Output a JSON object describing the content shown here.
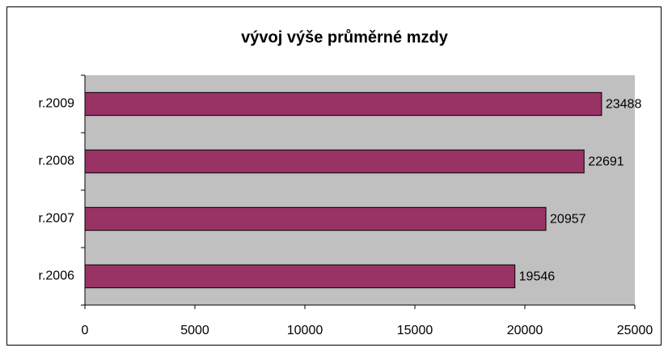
{
  "chart_data": {
    "type": "bar",
    "orientation": "horizontal",
    "title": "vývoj výše průměrné mzdy",
    "categories": [
      "r.2006",
      "r.2007",
      "r.2008",
      "r.2009"
    ],
    "values": [
      19546,
      20957,
      22691,
      23488
    ],
    "color": "#993366",
    "xlim": [
      0,
      25000
    ],
    "xticks": [
      0,
      5000,
      10000,
      15000,
      20000,
      25000
    ],
    "grid": false
  }
}
